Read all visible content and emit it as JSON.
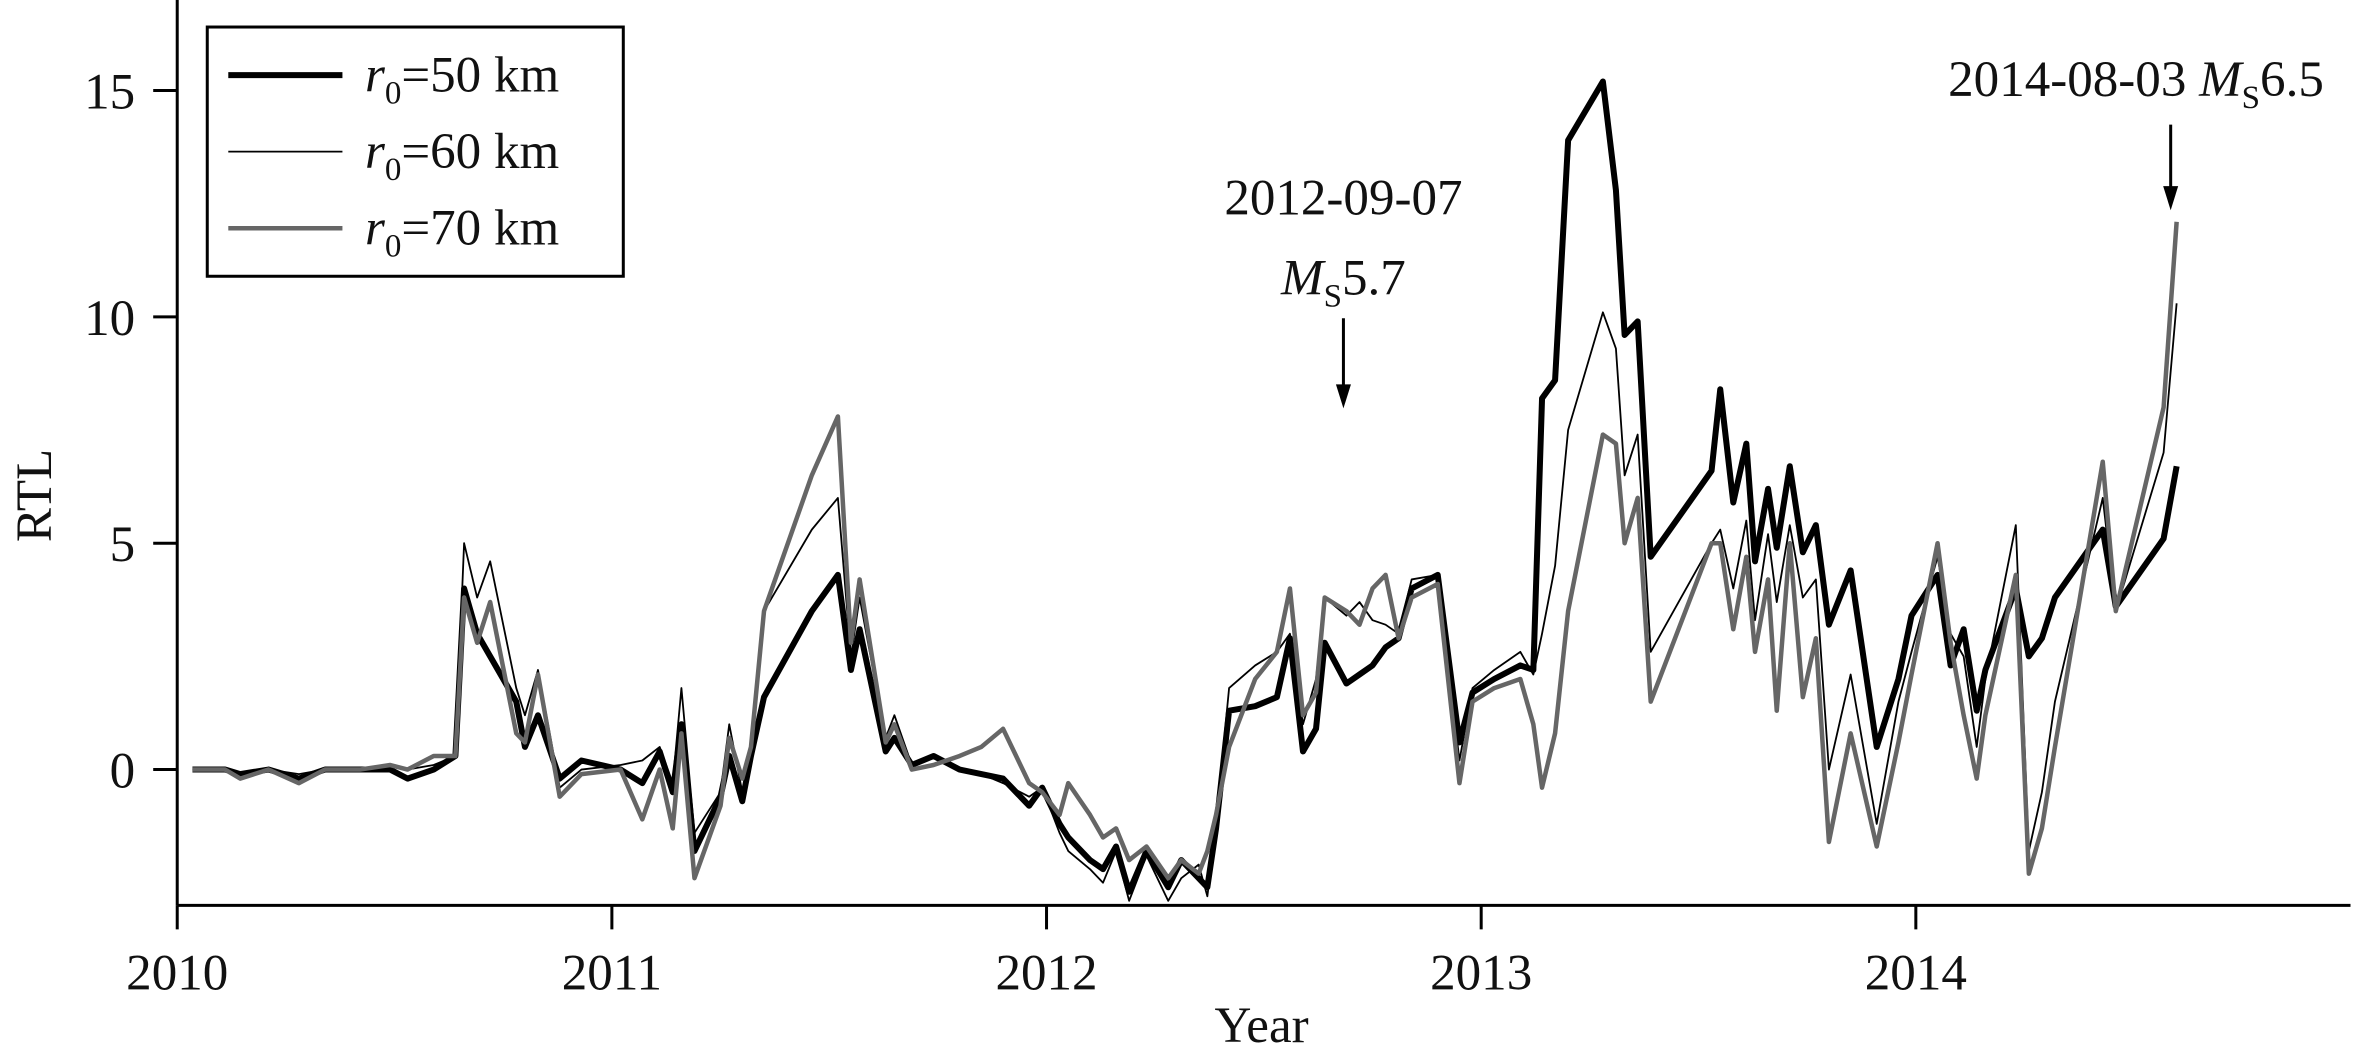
{
  "chart_data": {
    "type": "line",
    "x_label": "Year",
    "y_label": "RTL",
    "xlim": [
      2010,
      2015
    ],
    "xticks": [
      2010,
      2011,
      2012,
      2013,
      2014
    ],
    "ylim": [
      -3,
      17
    ],
    "yticks": [
      0,
      5,
      10,
      15
    ],
    "grid": false,
    "legend": "upper left",
    "x": [
      2010.035,
      2010.11,
      2010.145,
      2010.21,
      2010.28,
      2010.34,
      2010.42,
      2010.49,
      2010.53,
      2010.59,
      2010.64,
      2010.66,
      2010.69,
      2010.72,
      2010.78,
      2010.8,
      2010.83,
      2010.88,
      2010.93,
      2011.02,
      2011.07,
      2011.11,
      2011.14,
      2011.16,
      2011.19,
      2011.25,
      2011.27,
      2011.3,
      2011.32,
      2011.35,
      2011.46,
      2011.52,
      2011.55,
      2011.57,
      2011.63,
      2011.65,
      2011.69,
      2011.74,
      2011.8,
      2011.85,
      2011.9,
      2011.96,
      2011.99,
      2012.03,
      2012.05,
      2012.1,
      2012.13,
      2012.16,
      2012.19,
      2012.23,
      2012.28,
      2012.31,
      2012.35,
      2012.37,
      2012.39,
      2012.42,
      2012.48,
      2012.53,
      2012.56,
      2012.59,
      2012.62,
      2012.64,
      2012.69,
      2012.72,
      2012.75,
      2012.78,
      2012.81,
      2012.84,
      2012.9,
      2012.95,
      2012.98,
      2013.03,
      2013.09,
      2013.12,
      2013.14,
      2013.17,
      2013.2,
      2013.28,
      2013.31,
      2013.33,
      2013.36,
      2013.39,
      2013.53,
      2013.55,
      2013.58,
      2013.61,
      2013.63,
      2013.66,
      2013.68,
      2013.71,
      2013.74,
      2013.77,
      2013.8,
      2013.85,
      2013.91,
      2013.96,
      2013.99,
      2014.05,
      2014.08,
      2014.11,
      2014.14,
      2014.16,
      2014.23,
      2014.26,
      2014.29,
      2014.32,
      2014.43,
      2014.46,
      2014.57,
      2014.6
    ],
    "series": [
      {
        "name": "r0=50 km",
        "color": "#000000",
        "values": [
          0,
          0,
          -0.1,
          0,
          -0.2,
          0,
          0,
          0,
          -0.2,
          0,
          0.3,
          4,
          3,
          2.5,
          1.5,
          0.5,
          1.2,
          -0.2,
          0.2,
          0,
          -0.3,
          0.4,
          -0.5,
          1,
          -1.8,
          -0.6,
          0.3,
          -0.7,
          0.3,
          1.6,
          3.5,
          4.3,
          2.2,
          3.1,
          0.4,
          0.7,
          0.1,
          0.3,
          0,
          -0.1,
          -0.2,
          -0.8,
          -0.4,
          -1.2,
          -1.5,
          -2,
          -2.2,
          -1.7,
          -2.7,
          -1.8,
          -2.6,
          -2,
          -2.4,
          -2.6,
          -1.3,
          1.3,
          1.4,
          1.6,
          2.9,
          0.4,
          0.9,
          2.8,
          1.9,
          2.1,
          2.3,
          2.7,
          2.9,
          4,
          4.3,
          0.6,
          1.7,
          2,
          2.3,
          2.2,
          8.2,
          8.6,
          13.9,
          15.2,
          12.8,
          9.6,
          9.9,
          4.7,
          6.6,
          8.4,
          5.9,
          7.2,
          4.6,
          6.2,
          4.9,
          6.7,
          4.8,
          5.4,
          3.2,
          4.4,
          0.5,
          2,
          3.4,
          4.3,
          2.3,
          3.1,
          1.3,
          2.2,
          4,
          2.5,
          2.9,
          3.8,
          5.3,
          3.6,
          5.1,
          6.7
        ]
      },
      {
        "name": "r0=60 km",
        "color": "#000000",
        "values": [
          0,
          0,
          -0.1,
          0,
          -0.1,
          0,
          0,
          0.1,
          0,
          0.1,
          0.3,
          5,
          3.8,
          4.6,
          1.8,
          1.2,
          2.2,
          -0.4,
          0,
          0.1,
          0.2,
          0.5,
          -0.3,
          1.8,
          -1.4,
          -0.5,
          1,
          -0.5,
          0.3,
          3.5,
          5.3,
          6,
          2.5,
          3.8,
          0.7,
          1.2,
          0.1,
          0.3,
          0,
          -0.1,
          -0.3,
          -0.6,
          -0.4,
          -1.4,
          -1.8,
          -2.2,
          -2.5,
          -1.8,
          -2.9,
          -1.9,
          -2.9,
          -2.4,
          -2.1,
          -2.8,
          -1.2,
          1.8,
          2.3,
          2.6,
          3,
          1,
          2,
          3.8,
          3.4,
          3.7,
          3.3,
          3.2,
          3,
          4.2,
          4.3,
          0.2,
          1.8,
          2.2,
          2.6,
          2.1,
          3,
          4.5,
          7.5,
          10.1,
          9.3,
          6.5,
          7.4,
          2.6,
          5,
          5.3,
          4,
          5.5,
          3.3,
          5.2,
          3.7,
          5.4,
          3.8,
          4.2,
          0,
          2.1,
          -1.2,
          1.5,
          2.6,
          4.7,
          3,
          2.5,
          0.5,
          2,
          5.4,
          -1.8,
          -0.5,
          1.5,
          6,
          3.5,
          7,
          10.3
        ]
      },
      {
        "name": "r0=70 km",
        "color": "#666666",
        "values": [
          0,
          0,
          -0.2,
          0,
          -0.3,
          0,
          0,
          0.1,
          0,
          0.3,
          0.3,
          3.8,
          2.8,
          3.7,
          0.8,
          0.6,
          2.1,
          -0.6,
          -0.1,
          0,
          -1.1,
          0,
          -1.3,
          0.8,
          -2.4,
          -0.8,
          0.7,
          -0.2,
          0.5,
          3.5,
          6.5,
          7.8,
          2.8,
          4.2,
          0.6,
          1,
          0,
          0.1,
          0.3,
          0.5,
          0.9,
          -0.3,
          -0.5,
          -1,
          -0.3,
          -1,
          -1.5,
          -1.3,
          -2,
          -1.7,
          -2.4,
          -2,
          -2.3,
          -1.8,
          -1,
          0.5,
          2,
          2.6,
          4,
          1.2,
          1.7,
          3.8,
          3.5,
          3.2,
          4,
          4.3,
          2.9,
          3.8,
          4.1,
          -0.3,
          1.5,
          1.8,
          2,
          1,
          -0.4,
          0.8,
          3.5,
          7.4,
          7.2,
          5,
          6,
          1.5,
          5,
          5,
          3.1,
          4.7,
          2.6,
          4.2,
          1.3,
          5,
          1.6,
          2.9,
          -1.6,
          0.8,
          -1.7,
          0.6,
          2.1,
          5,
          2.8,
          1.2,
          -0.2,
          1.2,
          4.3,
          -2.3,
          -1.3,
          0.5,
          6.8,
          3.5,
          8,
          12.1
        ]
      }
    ],
    "annotations": [
      {
        "lines": [
          "2012-09-07",
          "MS5.7"
        ]
      },
      {
        "lines": [
          "2014-08-03 MS6.5"
        ]
      }
    ]
  }
}
